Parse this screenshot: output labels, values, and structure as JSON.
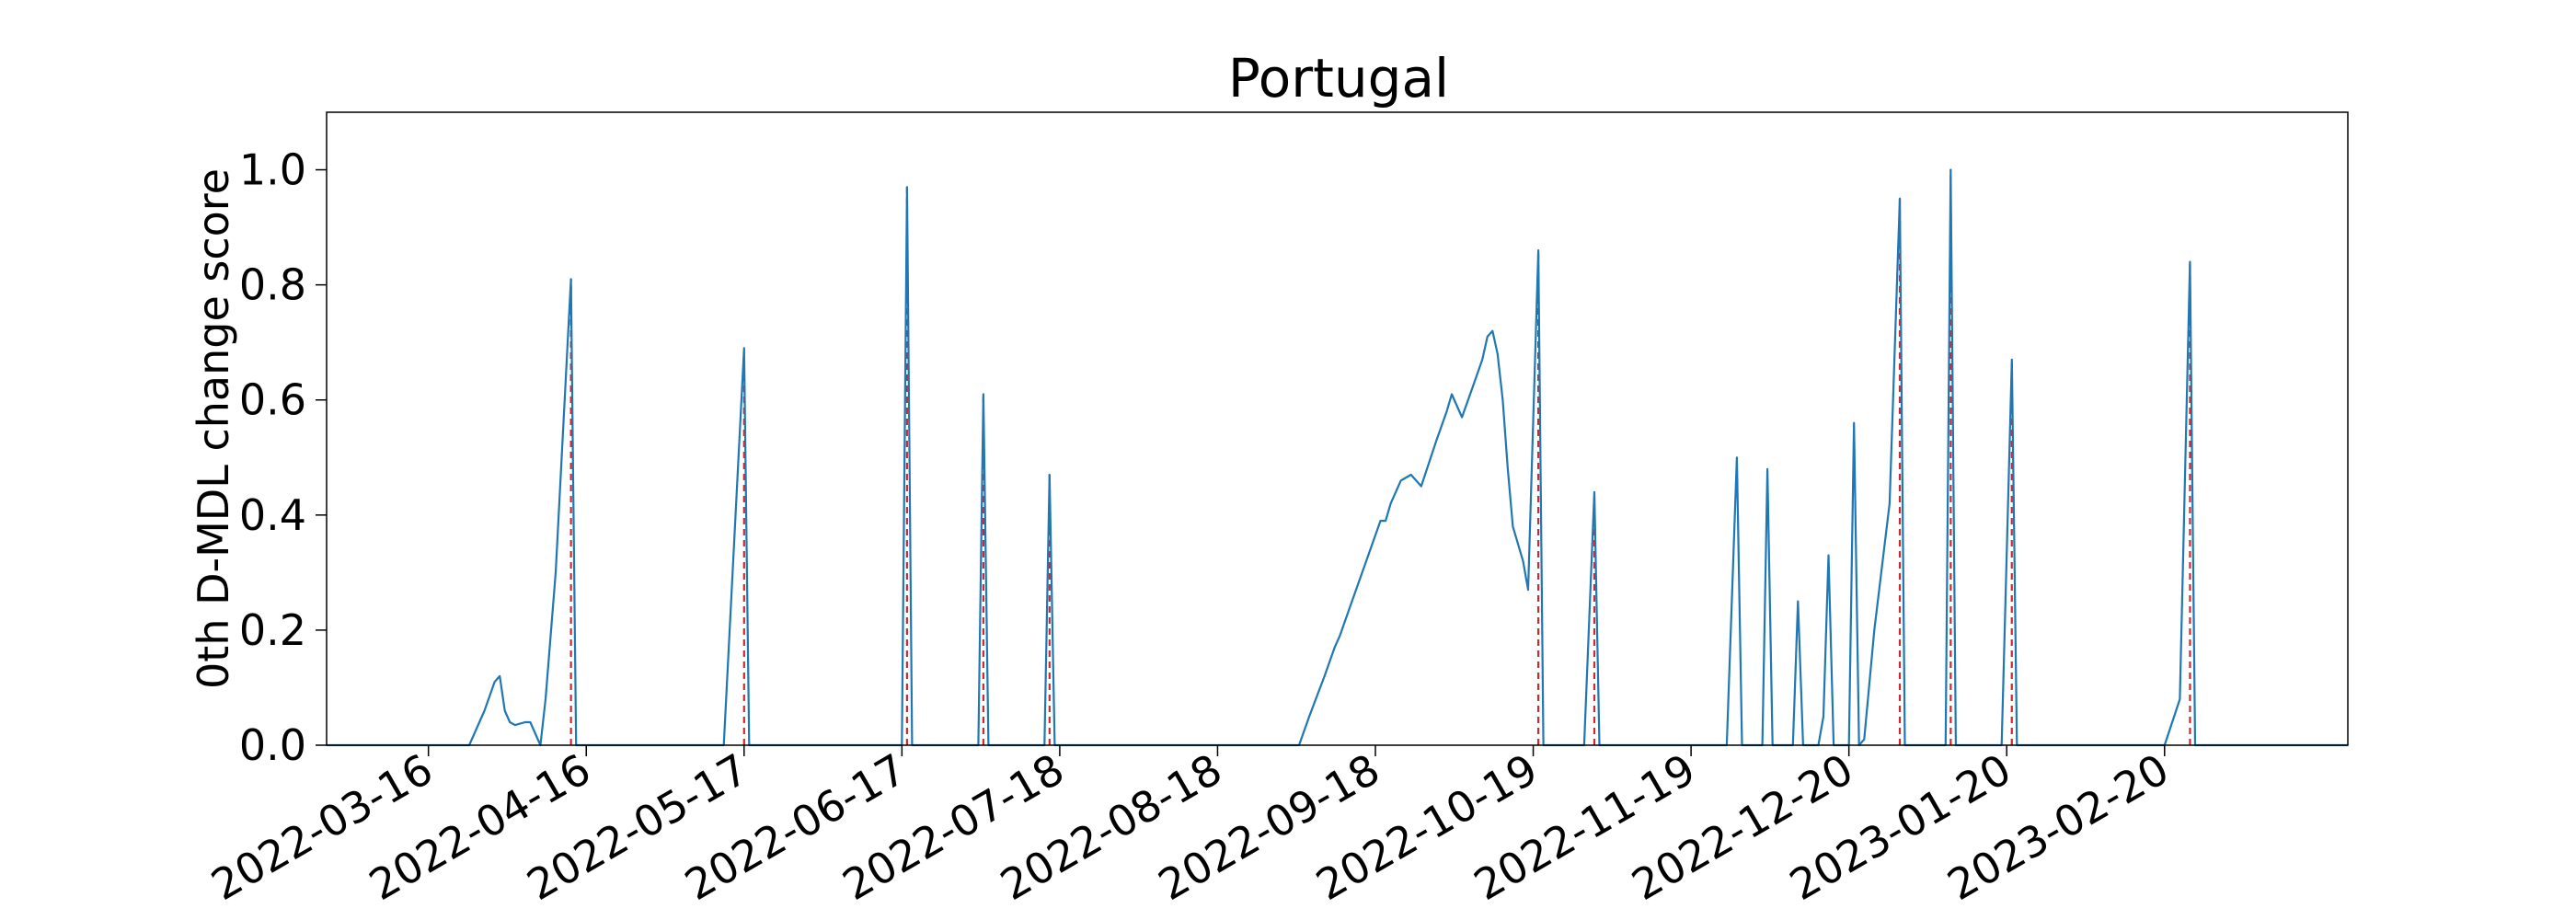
{
  "chart_data": {
    "type": "line",
    "title": "Portugal",
    "xlabel": "",
    "ylabel": "0th D-MDL change score",
    "x_axis": {
      "kind": "date",
      "range": [
        "2022-02-24",
        "2023-03-28"
      ],
      "ticks": [
        "2022-03-16",
        "2022-04-16",
        "2022-05-17",
        "2022-06-17",
        "2022-07-18",
        "2022-08-18",
        "2022-09-18",
        "2022-10-19",
        "2022-11-19",
        "2022-12-20",
        "2023-01-20",
        "2023-02-20"
      ]
    },
    "y_axis": {
      "range": [
        0,
        1.1
      ],
      "ticks": [
        "0.0",
        "0.2",
        "0.4",
        "0.6",
        "0.8",
        "1.0"
      ]
    },
    "grid": false,
    "series": [
      {
        "color": "#1f77b4",
        "points": [
          [
            "2022-02-24",
            0
          ],
          [
            "2022-03-24",
            0
          ],
          [
            "2022-03-27",
            0.06
          ],
          [
            "2022-03-29",
            0.11
          ],
          [
            "2022-03-30",
            0.12
          ],
          [
            "2022-03-31",
            0.06
          ],
          [
            "2022-04-01",
            0.04
          ],
          [
            "2022-04-02",
            0.035
          ],
          [
            "2022-04-04",
            0.04
          ],
          [
            "2022-04-05",
            0.04
          ],
          [
            "2022-04-06",
            0.02
          ],
          [
            "2022-04-07",
            0
          ],
          [
            "2022-04-08",
            0.08
          ],
          [
            "2022-04-10",
            0.3
          ],
          [
            "2022-04-13",
            0.81
          ],
          [
            "2022-04-14",
            0
          ],
          [
            "2022-05-13",
            0
          ],
          [
            "2022-05-17",
            0.69
          ],
          [
            "2022-05-18",
            0
          ],
          [
            "2022-06-17",
            0
          ],
          [
            "2022-06-18",
            0.97
          ],
          [
            "2022-06-19",
            0
          ],
          [
            "2022-07-02",
            0
          ],
          [
            "2022-07-03",
            0.61
          ],
          [
            "2022-07-04",
            0
          ],
          [
            "2022-07-15",
            0
          ],
          [
            "2022-07-16",
            0.47
          ],
          [
            "2022-07-17",
            0
          ],
          [
            "2022-09-03",
            0
          ],
          [
            "2022-09-05",
            0.05
          ],
          [
            "2022-09-08",
            0.12
          ],
          [
            "2022-09-10",
            0.17
          ],
          [
            "2022-09-11",
            0.19
          ],
          [
            "2022-09-13",
            0.24
          ],
          [
            "2022-09-17",
            0.34
          ],
          [
            "2022-09-19",
            0.39
          ],
          [
            "2022-09-20",
            0.39
          ],
          [
            "2022-09-21",
            0.42
          ],
          [
            "2022-09-23",
            0.46
          ],
          [
            "2022-09-25",
            0.47
          ],
          [
            "2022-09-27",
            0.45
          ],
          [
            "2022-09-30",
            0.53
          ],
          [
            "2022-10-02",
            0.58
          ],
          [
            "2022-10-03",
            0.61
          ],
          [
            "2022-10-05",
            0.57
          ],
          [
            "2022-10-07",
            0.62
          ],
          [
            "2022-10-09",
            0.67
          ],
          [
            "2022-10-10",
            0.71
          ],
          [
            "2022-10-11",
            0.72
          ],
          [
            "2022-10-12",
            0.68
          ],
          [
            "2022-10-13",
            0.6
          ],
          [
            "2022-10-14",
            0.48
          ],
          [
            "2022-10-15",
            0.38
          ],
          [
            "2022-10-17",
            0.32
          ],
          [
            "2022-10-18",
            0.27
          ],
          [
            "2022-10-20",
            0.86
          ],
          [
            "2022-10-21",
            0
          ],
          [
            "2022-10-29",
            0
          ],
          [
            "2022-10-31",
            0.44
          ],
          [
            "2022-11-01",
            0
          ],
          [
            "2022-11-26",
            0
          ],
          [
            "2022-11-28",
            0.5
          ],
          [
            "2022-11-29",
            0
          ],
          [
            "2022-12-03",
            0
          ],
          [
            "2022-12-04",
            0.48
          ],
          [
            "2022-12-05",
            0
          ],
          [
            "2022-12-09",
            0
          ],
          [
            "2022-12-10",
            0.25
          ],
          [
            "2022-12-11",
            0
          ],
          [
            "2022-12-14",
            0
          ],
          [
            "2022-12-15",
            0.05
          ],
          [
            "2022-12-16",
            0.33
          ],
          [
            "2022-12-17",
            0
          ],
          [
            "2022-12-18",
            0
          ],
          [
            "2022-12-20",
            0
          ],
          [
            "2022-12-21",
            0.56
          ],
          [
            "2022-12-22",
            0
          ],
          [
            "2022-12-23",
            0.01
          ],
          [
            "2022-12-25",
            0.2
          ],
          [
            "2022-12-28",
            0.42
          ],
          [
            "2022-12-30",
            0.95
          ],
          [
            "2022-12-31",
            0
          ],
          [
            "2023-01-08",
            0
          ],
          [
            "2023-01-09",
            1.0
          ],
          [
            "2023-01-10",
            0
          ],
          [
            "2023-01-19",
            0
          ],
          [
            "2023-01-21",
            0.67
          ],
          [
            "2023-01-22",
            0
          ],
          [
            "2023-02-20",
            0
          ],
          [
            "2023-02-23",
            0.08
          ],
          [
            "2023-02-25",
            0.84
          ],
          [
            "2023-02-26",
            0
          ],
          [
            "2023-03-28",
            0
          ]
        ]
      }
    ],
    "change_points": {
      "color": "#d62728",
      "style": "dashed",
      "dates": [
        "2022-04-13",
        "2022-05-17",
        "2022-06-18",
        "2022-07-03",
        "2022-07-16",
        "2022-10-20",
        "2022-10-31",
        "2022-12-30",
        "2023-01-09",
        "2023-01-21",
        "2023-02-25"
      ],
      "values": [
        0.81,
        0.69,
        0.97,
        0.61,
        0.47,
        0.86,
        0.44,
        0.95,
        1.0,
        0.67,
        0.84
      ]
    }
  }
}
